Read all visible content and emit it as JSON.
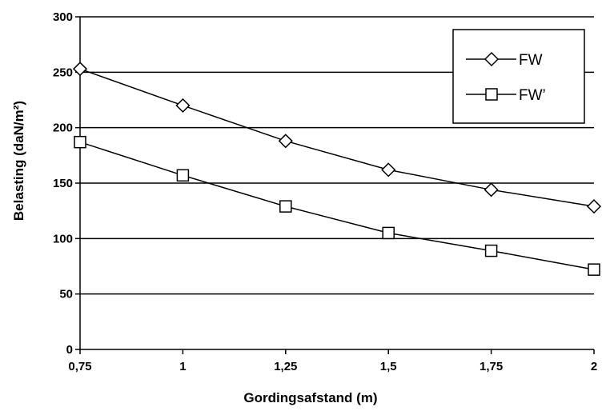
{
  "chart_data": {
    "type": "line",
    "x": [
      0.75,
      1,
      1.25,
      1.5,
      1.75,
      2
    ],
    "x_tick_labels": [
      "0,75",
      "1",
      "1,25",
      "1,5",
      "1,75",
      "2"
    ],
    "y_tick_labels": [
      "0",
      "50",
      "100",
      "150",
      "200",
      "250",
      "300"
    ],
    "y_ticks": [
      0,
      50,
      100,
      150,
      200,
      250,
      300
    ],
    "xlabel": "Gordingsafstand (m)",
    "ylabel": "Belasting (daN/m²)",
    "xlim": [
      0.75,
      2
    ],
    "ylim": [
      0,
      300
    ],
    "grid": "horizontal",
    "legend_position": "top-right",
    "series": [
      {
        "name": "FW",
        "marker": "diamond",
        "values": [
          253,
          220,
          188,
          162,
          144,
          129
        ]
      },
      {
        "name": "FW’",
        "marker": "square",
        "values": [
          187,
          157,
          129,
          105,
          89,
          72
        ]
      }
    ]
  }
}
